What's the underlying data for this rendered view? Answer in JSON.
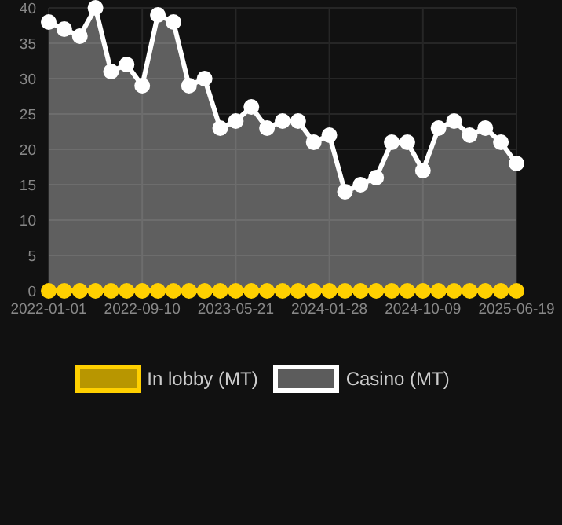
{
  "chart_data": {
    "type": "area",
    "categories": [
      "2022-01-01",
      null,
      null,
      null,
      null,
      null,
      "2022-09-10",
      null,
      null,
      null,
      null,
      null,
      "2023-05-21",
      null,
      null,
      null,
      null,
      null,
      "2024-01-28",
      null,
      null,
      null,
      null,
      null,
      "2024-10-09",
      null,
      null,
      null,
      null,
      null,
      "2025-06-19"
    ],
    "series": [
      {
        "name": "In lobby (MT)",
        "type": "line",
        "color": "#ffd000",
        "values": [
          0,
          0,
          0,
          0,
          0,
          0,
          0,
          0,
          0,
          0,
          0,
          0,
          0,
          0,
          0,
          0,
          0,
          0,
          0,
          0,
          0,
          0,
          0,
          0,
          0,
          0,
          0,
          0,
          0,
          0,
          0
        ]
      },
      {
        "name": "Casino (MT)",
        "color": "#ffffff",
        "values": [
          38,
          37,
          36,
          40,
          31,
          32,
          29,
          39,
          38,
          29,
          30,
          23,
          24,
          26,
          23,
          24,
          24,
          21,
          22,
          14,
          15,
          16,
          21,
          21,
          17,
          23,
          24,
          22,
          23,
          21,
          18
        ]
      }
    ],
    "ylim": [
      0,
      40
    ],
    "yticks": [
      0,
      5,
      10,
      15,
      20,
      25,
      30,
      35,
      40
    ],
    "grid": true,
    "legend": "bottom",
    "marker": "circle"
  }
}
